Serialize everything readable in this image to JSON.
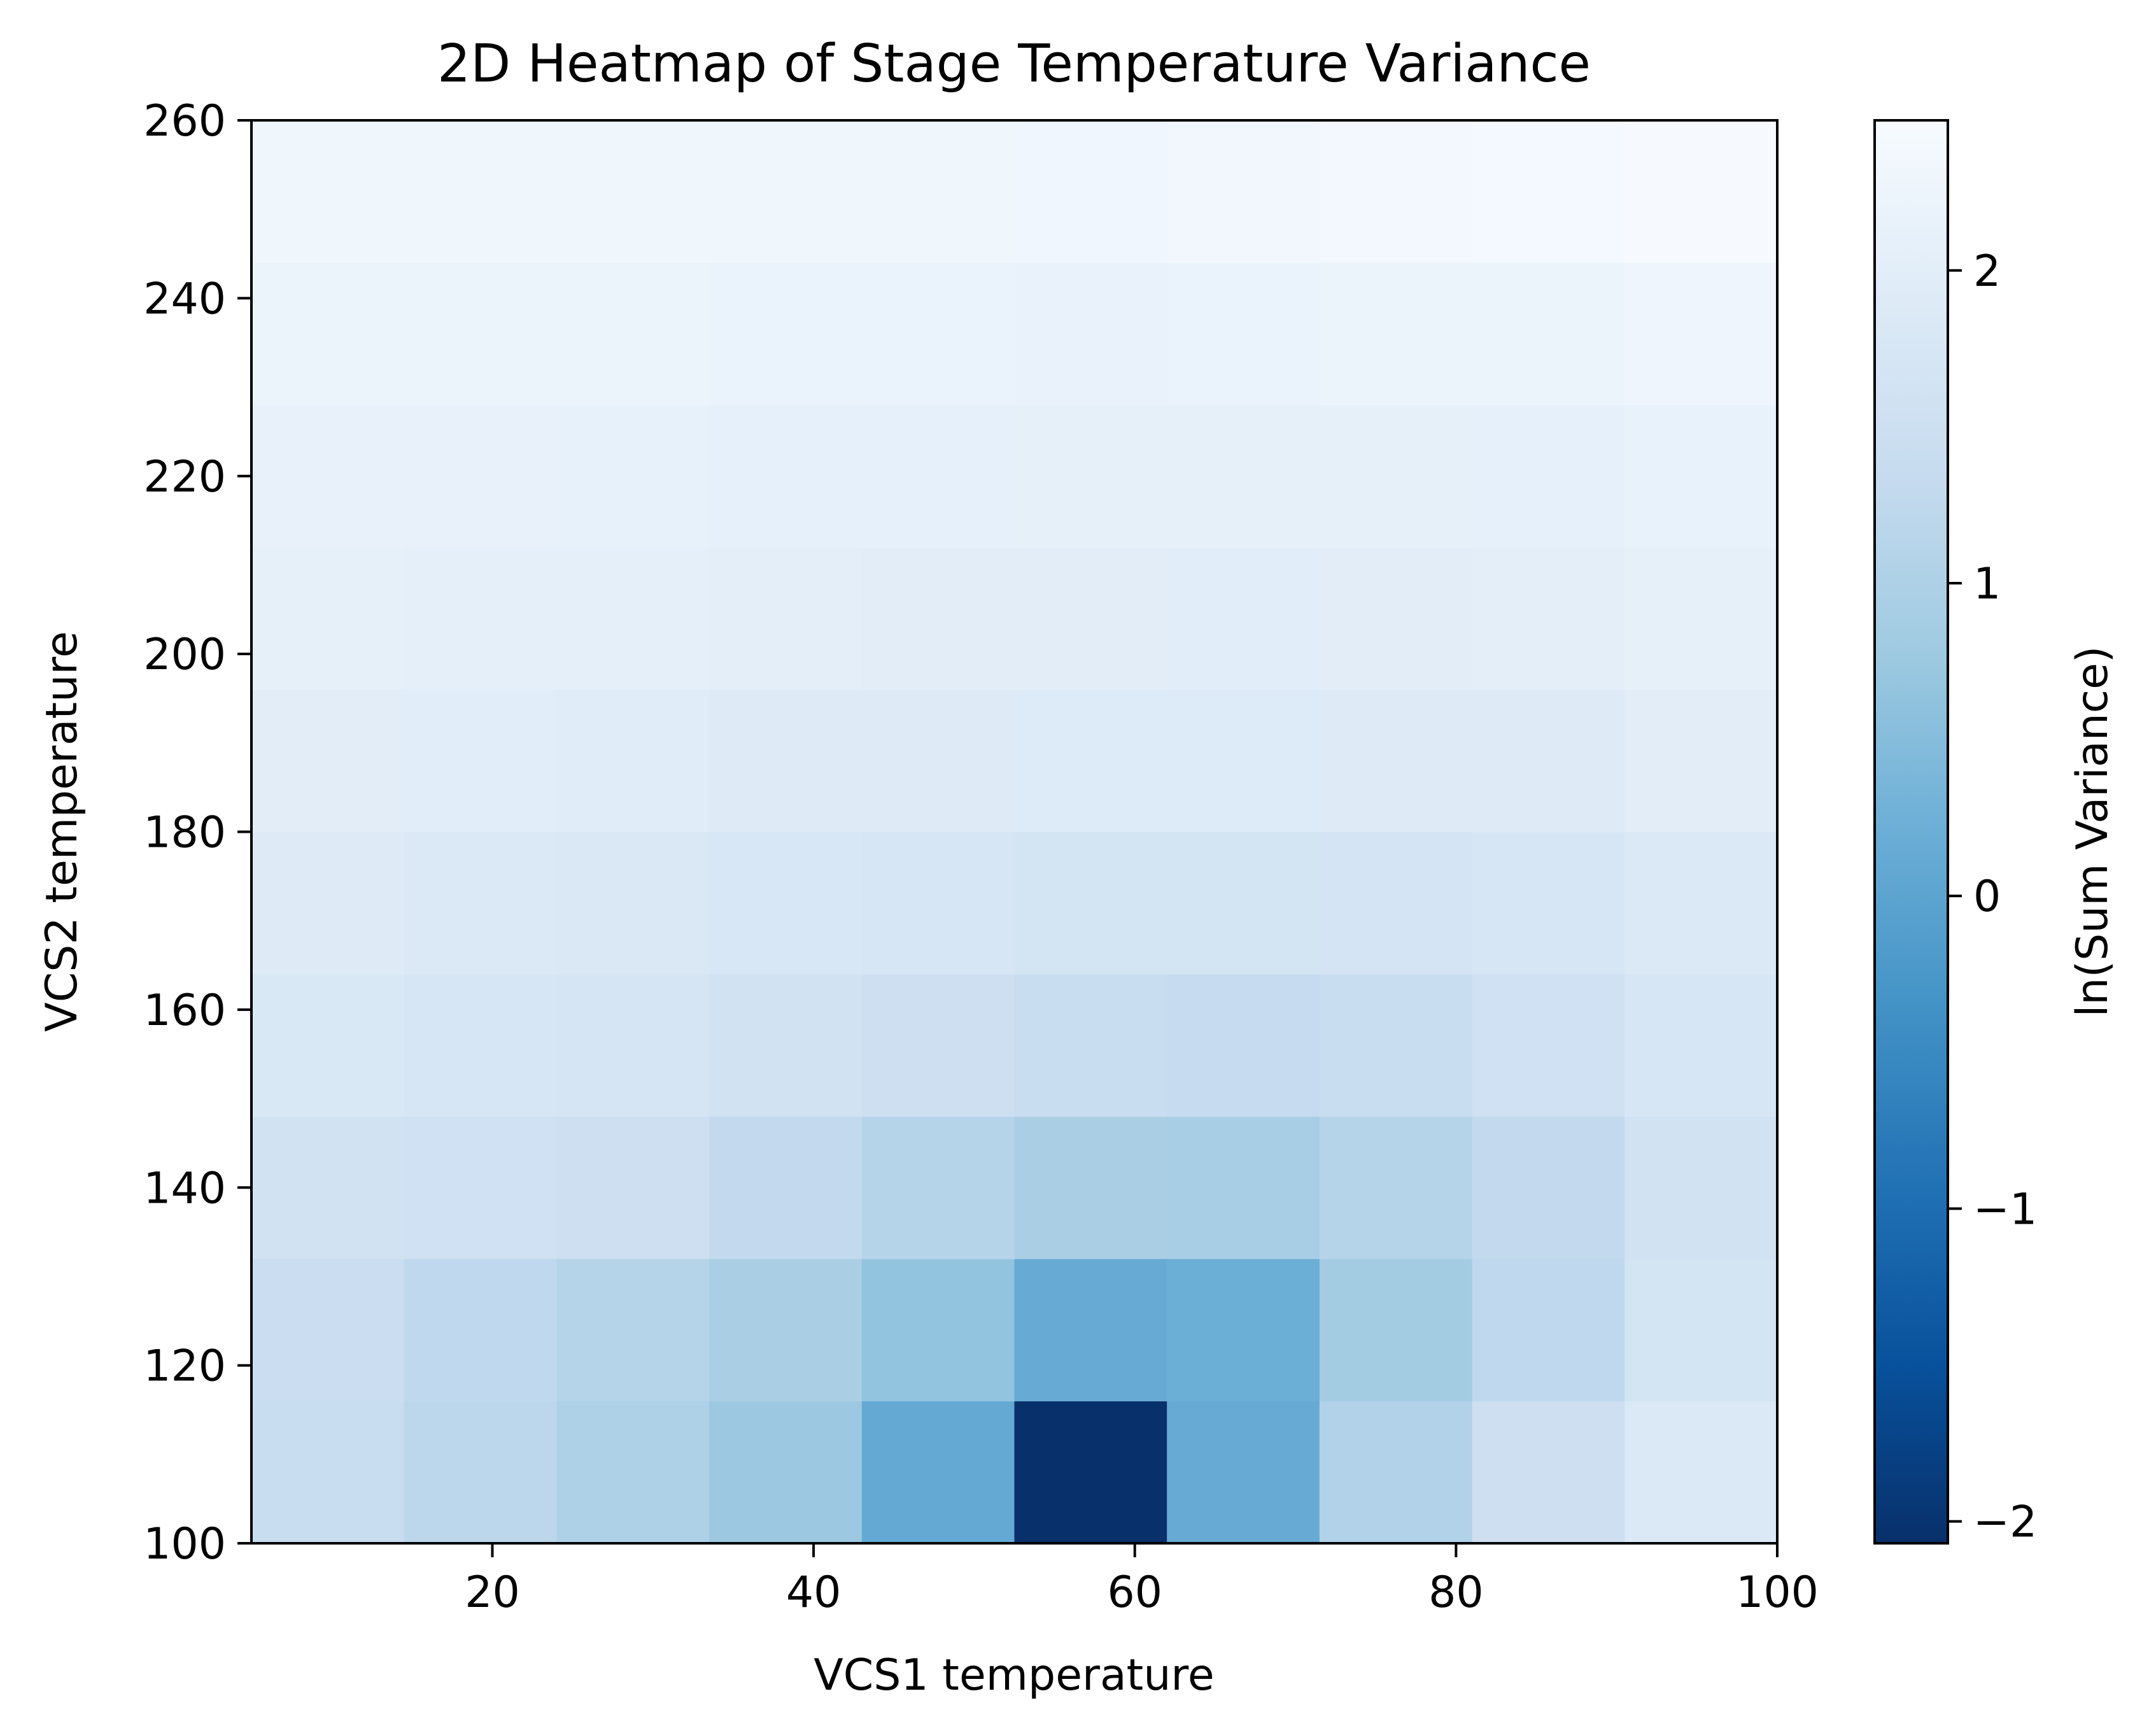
{
  "chart_data": {
    "type": "heatmap",
    "title": "2D Heatmap of Stage Temperature Variance",
    "xlabel": "VCS1 temperature",
    "ylabel": "VCS2 temperature",
    "colorbar_label": "ln(Sum Variance)",
    "colormap": "Blues_r",
    "xlim": [
      5,
      100
    ],
    "ylim": [
      100,
      260
    ],
    "x_ticks": [
      20,
      40,
      60,
      80,
      100
    ],
    "y_ticks": [
      100,
      120,
      140,
      160,
      180,
      200,
      220,
      240,
      260
    ],
    "colorbar_ticks": [
      -2,
      -1,
      0,
      1,
      2
    ],
    "color_range": [
      -2.07,
      2.48
    ],
    "x_bin_edges": [
      5,
      14.5,
      24,
      33.5,
      43,
      52.5,
      62,
      71.5,
      81,
      90.5,
      100
    ],
    "y_bin_edges": [
      100,
      116,
      132,
      148,
      164,
      180,
      196,
      212,
      228,
      244,
      260
    ],
    "values": [
      [
        1.4,
        1.2,
        1.0,
        0.75,
        0.1,
        -2.07,
        0.15,
        1.05,
        1.5,
        1.85
      ],
      [
        1.45,
        1.25,
        1.1,
        0.95,
        0.65,
        0.15,
        0.2,
        0.85,
        1.25,
        1.65
      ],
      [
        1.6,
        1.55,
        1.5,
        1.3,
        1.1,
        0.95,
        0.9,
        1.1,
        1.3,
        1.6
      ],
      [
        1.8,
        1.75,
        1.7,
        1.6,
        1.5,
        1.4,
        1.35,
        1.4,
        1.55,
        1.75
      ],
      [
        1.9,
        1.85,
        1.82,
        1.78,
        1.72,
        1.65,
        1.65,
        1.68,
        1.75,
        1.85
      ],
      [
        2.0,
        1.98,
        1.96,
        1.92,
        1.9,
        1.88,
        1.88,
        1.9,
        1.92,
        2.0
      ],
      [
        2.08,
        2.06,
        2.04,
        2.02,
        2.0,
        2.0,
        1.98,
        2.0,
        2.02,
        2.08
      ],
      [
        2.14,
        2.13,
        2.12,
        2.1,
        2.1,
        2.08,
        2.08,
        2.08,
        2.1,
        2.15
      ],
      [
        2.22,
        2.2,
        2.2,
        2.18,
        2.18,
        2.17,
        2.18,
        2.2,
        2.22,
        2.28
      ],
      [
        2.3,
        2.3,
        2.3,
        2.3,
        2.3,
        2.32,
        2.35,
        2.38,
        2.4,
        2.45
      ]
    ]
  }
}
